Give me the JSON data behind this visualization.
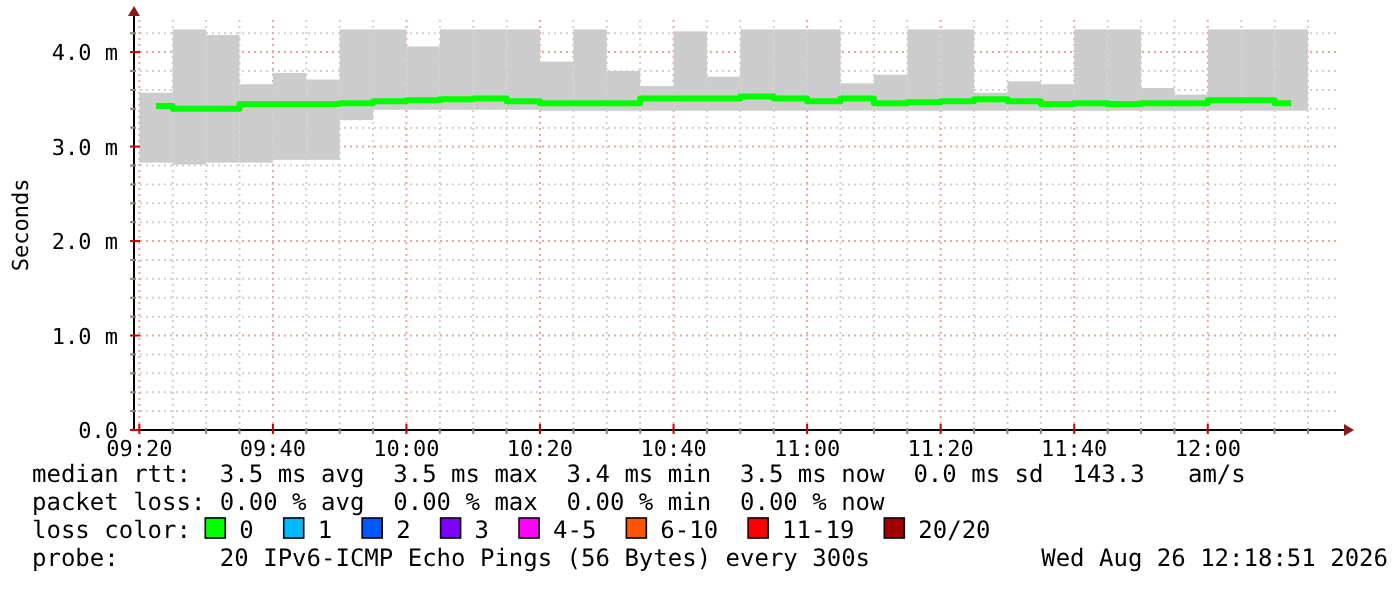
{
  "chart_data": {
    "type": "bar",
    "ylabel": "Seconds",
    "legend_title": "loss color:",
    "legend": "bottom",
    "grid": true,
    "xlim": [
      9.32,
      12.32
    ],
    "xticks": [
      {
        "value": 9.3333,
        "label": "09:20"
      },
      {
        "value": 9.4167,
        "label": null
      },
      {
        "value": 9.5,
        "label": null
      },
      {
        "value": 9.5833,
        "label": null
      },
      {
        "value": 9.6667,
        "label": "09:40"
      },
      {
        "value": 9.75,
        "label": null
      },
      {
        "value": 9.8333,
        "label": null
      },
      {
        "value": 9.9167,
        "label": null
      },
      {
        "value": 10,
        "label": "10:00"
      },
      {
        "value": 10.0833,
        "label": null
      },
      {
        "value": 10.1667,
        "label": null
      },
      {
        "value": 10.25,
        "label": null
      },
      {
        "value": 10.3333,
        "label": "10:20"
      },
      {
        "value": 10.4167,
        "label": null
      },
      {
        "value": 10.5,
        "label": null
      },
      {
        "value": 10.5833,
        "label": null
      },
      {
        "value": 10.6667,
        "label": "10:40"
      },
      {
        "value": 10.75,
        "label": null
      },
      {
        "value": 10.8333,
        "label": null
      },
      {
        "value": 10.9167,
        "label": null
      },
      {
        "value": 11,
        "label": "11:00"
      },
      {
        "value": 11.0833,
        "label": null
      },
      {
        "value": 11.1667,
        "label": null
      },
      {
        "value": 11.25,
        "label": null
      },
      {
        "value": 11.3333,
        "label": "11:20"
      },
      {
        "value": 11.4167,
        "label": null
      },
      {
        "value": 11.5,
        "label": null
      },
      {
        "value": 11.5833,
        "label": null
      },
      {
        "value": 11.6667,
        "label": "11:40"
      },
      {
        "value": 11.75,
        "label": null
      },
      {
        "value": 11.8333,
        "label": null
      },
      {
        "value": 11.9167,
        "label": null
      },
      {
        "value": 12,
        "label": "12:00"
      },
      {
        "value": 12.0833,
        "label": null
      },
      {
        "value": 12.1667,
        "label": null
      },
      {
        "value": 12.25,
        "label": null
      }
    ],
    "ylim": [
      0,
      4.34
    ],
    "yticks": [
      {
        "value": 0,
        "label": "0.0"
      },
      {
        "value": 0.2,
        "label": null
      },
      {
        "value": 0.4,
        "label": null
      },
      {
        "value": 0.6,
        "label": null
      },
      {
        "value": 0.8,
        "label": null
      },
      {
        "value": 1,
        "label": "1.0 m"
      },
      {
        "value": 1.2,
        "label": null
      },
      {
        "value": 1.4,
        "label": null
      },
      {
        "value": 1.6,
        "label": null
      },
      {
        "value": 1.8,
        "label": null
      },
      {
        "value": 2,
        "label": "2.0 m"
      },
      {
        "value": 2.2,
        "label": null
      },
      {
        "value": 2.4,
        "label": null
      },
      {
        "value": 2.6,
        "label": null
      },
      {
        "value": 2.8,
        "label": null
      },
      {
        "value": 3,
        "label": "3.0 m"
      },
      {
        "value": 3.2,
        "label": null
      },
      {
        "value": 3.4,
        "label": null
      },
      {
        "value": 3.6,
        "label": null
      },
      {
        "value": 3.8,
        "label": null
      },
      {
        "value": 4,
        "label": "4.0 m"
      },
      {
        "value": 4.2,
        "label": null
      }
    ],
    "x": [
      9.375,
      9.4583,
      9.5417,
      9.625,
      9.7083,
      9.7917,
      9.875,
      9.9583,
      10.0417,
      10.125,
      10.2083,
      10.2917,
      10.375,
      10.4583,
      10.5417,
      10.625,
      10.7083,
      10.7917,
      10.875,
      10.9583,
      11.0417,
      11.125,
      11.2083,
      11.2917,
      11.375,
      11.4583,
      11.5417,
      11.625,
      11.7083,
      11.7917,
      11.875,
      11.9583,
      12.0417,
      12.125,
      12.2083
    ],
    "series": [
      {
        "color": "#cccccc",
        "base": [
          2.83,
          2.81,
          2.83,
          2.83,
          2.86,
          2.86,
          3.28,
          3.39,
          3.39,
          3.39,
          3.39,
          3.39,
          3.38,
          3.38,
          3.38,
          3.38,
          3.38,
          3.38,
          3.38,
          3.38,
          3.38,
          3.38,
          3.38,
          3.38,
          3.38,
          3.38,
          3.38,
          3.38,
          3.38,
          3.38,
          3.38,
          3.38,
          3.38,
          3.38,
          3.38
        ],
        "values": [
          0.74,
          1.43,
          1.35,
          0.83,
          0.92,
          0.85,
          0.96,
          0.85,
          0.67,
          0.85,
          0.85,
          0.85,
          0.52,
          0.86,
          0.42,
          0.26,
          0.84,
          0.36,
          0.86,
          0.86,
          0.86,
          0.29,
          0.38,
          0.86,
          0.86,
          0.19,
          0.31,
          0.28,
          0.86,
          0.86,
          0.24,
          0.17,
          0.86,
          0.86,
          0.86
        ]
      },
      {
        "type": "step",
        "name": "0",
        "color": "#00ff00",
        "values": [
          3.43,
          3.4,
          3.4,
          3.45,
          3.45,
          3.45,
          3.46,
          3.48,
          3.49,
          3.5,
          3.51,
          3.48,
          3.46,
          3.46,
          3.46,
          3.51,
          3.51,
          3.51,
          3.53,
          3.51,
          3.48,
          3.51,
          3.46,
          3.47,
          3.48,
          3.5,
          3.48,
          3.45,
          3.46,
          3.45,
          3.46,
          3.46,
          3.49,
          3.49,
          3.46
        ]
      },
      {
        "type": "step",
        "name": "1",
        "color": "#00b8ff",
        "values": [
          null,
          null,
          null,
          null,
          null,
          null,
          null,
          null,
          null,
          null,
          null,
          null,
          null,
          null,
          null,
          null,
          null,
          null,
          null,
          null,
          null,
          null,
          null,
          null,
          null,
          null,
          null,
          null,
          null,
          null,
          null,
          null,
          null,
          null,
          null
        ]
      },
      {
        "type": "step",
        "name": "2",
        "color": "#0059ff",
        "values": [
          null,
          null,
          null,
          null,
          null,
          null,
          null,
          null,
          null,
          null,
          null,
          null,
          null,
          null,
          null,
          null,
          null,
          null,
          null,
          null,
          null,
          null,
          null,
          null,
          null,
          null,
          null,
          null,
          null,
          null,
          null,
          null,
          null,
          null,
          null
        ]
      },
      {
        "type": "step",
        "name": "3",
        "color": "#7e00ff",
        "values": [
          null,
          null,
          null,
          null,
          null,
          null,
          null,
          null,
          null,
          null,
          null,
          null,
          null,
          null,
          null,
          null,
          null,
          null,
          null,
          null,
          null,
          null,
          null,
          null,
          null,
          null,
          null,
          null,
          null,
          null,
          null,
          null,
          null,
          null,
          null
        ]
      },
      {
        "type": "step",
        "name": "4-5",
        "color": "#ff00ff",
        "values": [
          null,
          null,
          null,
          null,
          null,
          null,
          null,
          null,
          null,
          null,
          null,
          null,
          null,
          null,
          null,
          null,
          null,
          null,
          null,
          null,
          null,
          null,
          null,
          null,
          null,
          null,
          null,
          null,
          null,
          null,
          null,
          null,
          null,
          null,
          null
        ]
      },
      {
        "type": "step",
        "name": "6-10",
        "color": "#ff5500",
        "values": [
          null,
          null,
          null,
          null,
          null,
          null,
          null,
          null,
          null,
          null,
          null,
          null,
          null,
          null,
          null,
          null,
          null,
          null,
          null,
          null,
          null,
          null,
          null,
          null,
          null,
          null,
          null,
          null,
          null,
          null,
          null,
          null,
          null,
          null,
          null
        ]
      },
      {
        "type": "step",
        "name": "11-19",
        "color": "#ff0000",
        "values": [
          null,
          null,
          null,
          null,
          null,
          null,
          null,
          null,
          null,
          null,
          null,
          null,
          null,
          null,
          null,
          null,
          null,
          null,
          null,
          null,
          null,
          null,
          null,
          null,
          null,
          null,
          null,
          null,
          null,
          null,
          null,
          null,
          null,
          null,
          null
        ]
      },
      {
        "type": "step",
        "name": "20/20",
        "color": "#a10000",
        "values": [
          null,
          null,
          null,
          null,
          null,
          null,
          null,
          null,
          null,
          null,
          null,
          null,
          null,
          null,
          null,
          null,
          null,
          null,
          null,
          null,
          null,
          null,
          null,
          null,
          null,
          null,
          null,
          null,
          null,
          null,
          null,
          null,
          null,
          null,
          null
        ]
      }
    ],
    "annotations": [
      "median rtt:  3.5 ms avg  3.5 ms max  3.4 ms min  3.5 ms now  0.0 ms sd  143.3   am/s",
      "packet loss: 0.00 % avg  0.00 % max  0.00 % min  0.00 % now",
      "probe:       20 IPv6-ICMP Echo Pings (56 Bytes) every 300s",
      "Wed Aug 26 12:18:51 2026"
    ]
  }
}
